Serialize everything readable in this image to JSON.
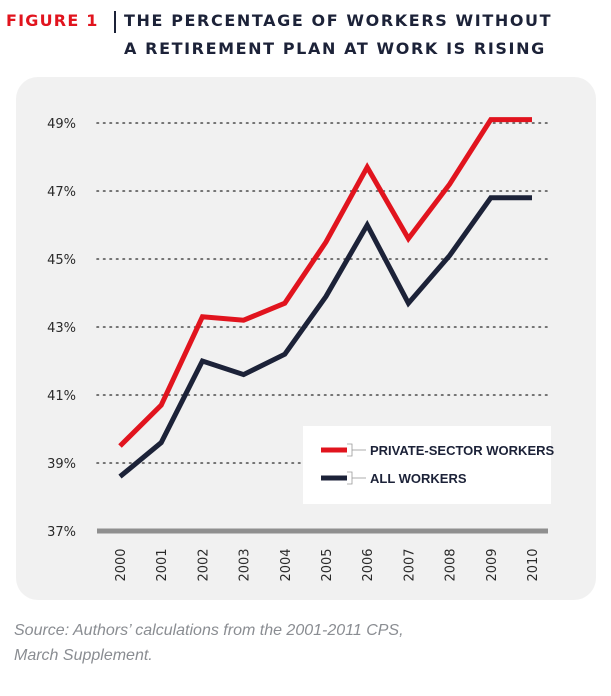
{
  "figure": {
    "label": "FIGURE 1",
    "title_line1": "THE PERCENTAGE OF WORKERS WITHOUT",
    "title_line2": "A RETIREMENT PLAN AT WORK IS RISING"
  },
  "source": {
    "line1": "Source: Authors’ calculations from the 2001-2011 CPS,",
    "line2": "March Supplement."
  },
  "chart_data": {
    "type": "line",
    "title": "THE PERCENTAGE OF WORKERS WITHOUT A RETIREMENT PLAN AT WORK IS RISING",
    "xlabel": "",
    "ylabel": "",
    "categories": [
      "2000",
      "2001",
      "2002",
      "2003",
      "2004",
      "2005",
      "2006",
      "2007",
      "2008",
      "2009",
      "2010"
    ],
    "yticks": [
      "37%",
      "39%",
      "41%",
      "43%",
      "45%",
      "47%",
      "49%"
    ],
    "ylim": [
      37,
      49.5
    ],
    "grid": "horizontal-dotted",
    "legend_position": "bottom-right",
    "series": [
      {
        "name": "PRIVATE-SECTOR WORKERS",
        "color": "#e1141e",
        "values": [
          39.5,
          40.7,
          43.3,
          43.2,
          43.7,
          45.5,
          47.7,
          45.6,
          47.2,
          49.1,
          49.1
        ]
      },
      {
        "name": "ALL WORKERS",
        "color": "#1c2238",
        "values": [
          38.6,
          39.6,
          42.0,
          41.6,
          42.2,
          43.9,
          46.0,
          43.7,
          45.1,
          46.8,
          46.8
        ]
      }
    ]
  }
}
